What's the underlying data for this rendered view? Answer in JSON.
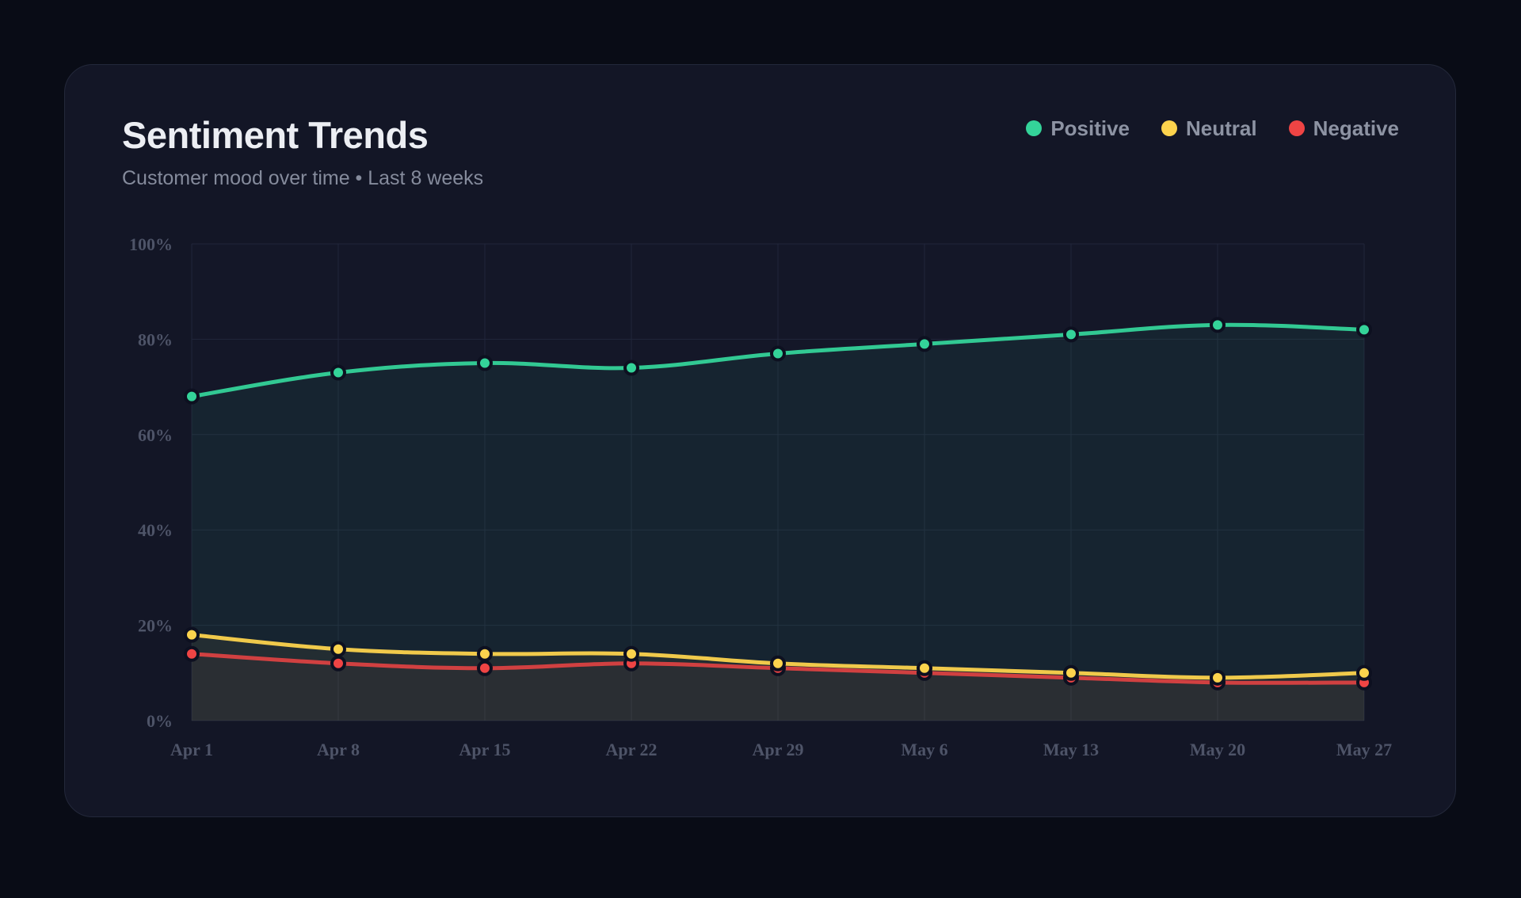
{
  "header": {
    "title": "Sentiment Trends",
    "subtitle": "Customer mood over time • Last 8 weeks"
  },
  "colors": {
    "positive": "#34d399",
    "neutral": "#fcd34d",
    "negative": "#ef4444"
  },
  "chart_data": {
    "type": "line",
    "title": "Sentiment Trends",
    "subtitle": "Customer mood over time • Last 8 weeks",
    "categories": [
      "Apr 1",
      "Apr 8",
      "Apr 15",
      "Apr 22",
      "Apr 29",
      "May 6",
      "May 13",
      "May 20",
      "May 27"
    ],
    "y_ticks": [
      "0%",
      "20%",
      "40%",
      "60%",
      "80%",
      "100%"
    ],
    "ylim": [
      0,
      100
    ],
    "y_unit": "%",
    "grid": true,
    "area_fill": true,
    "legend_position": "top-right",
    "series": [
      {
        "name": "Positive",
        "key": "positive",
        "color": "#34d399",
        "values": [
          68,
          73,
          75,
          74,
          77,
          79,
          81,
          83,
          82
        ]
      },
      {
        "name": "Neutral",
        "key": "neutral",
        "color": "#fcd34d",
        "values": [
          18,
          15,
          14,
          14,
          12,
          11,
          10,
          9,
          10
        ]
      },
      {
        "name": "Negative",
        "key": "negative",
        "color": "#ef4444",
        "values": [
          14,
          12,
          11,
          12,
          11,
          10,
          9,
          8,
          8
        ]
      }
    ]
  }
}
